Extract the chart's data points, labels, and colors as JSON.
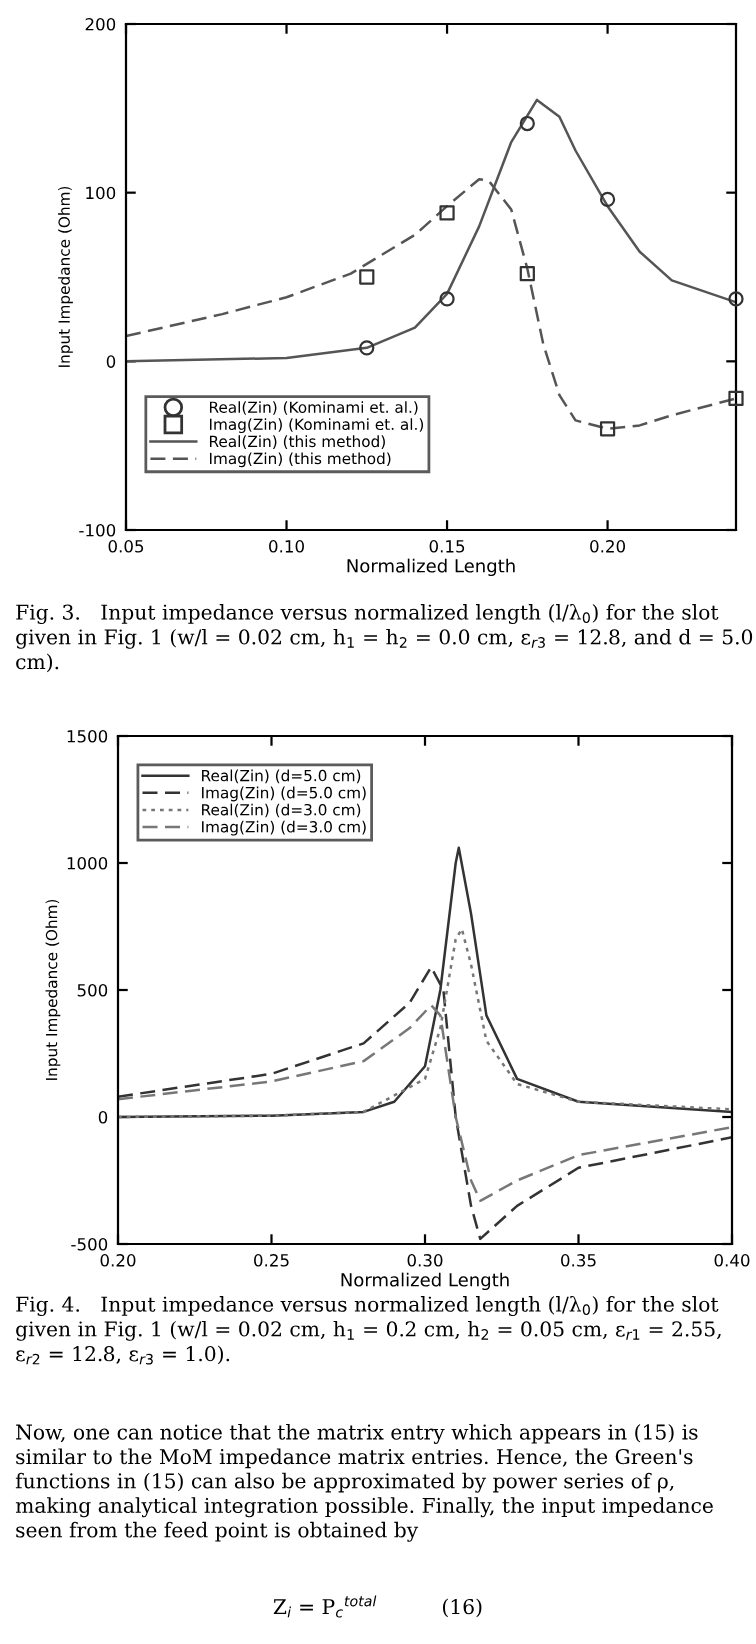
{
  "chart_data": [
    {
      "type": "line",
      "xlabel": "Normalized Length",
      "ylabel": "Input Impedance (Ohm)",
      "xlim": [
        0.05,
        0.24
      ],
      "ylim": [
        -100,
        200
      ],
      "xticks": [
        {
          "value": 0.05,
          "label": "0.05"
        },
        {
          "value": 0.1,
          "label": "0.10"
        },
        {
          "value": 0.15,
          "label": "0.15"
        },
        {
          "value": 0.2,
          "label": "0.20"
        }
      ],
      "yticks": [
        -100,
        0,
        100,
        200
      ],
      "grid": false,
      "legend": "bottom left",
      "series": [
        {
          "name": "Real(Zin) (Kominami et. al.)",
          "type": "scatter",
          "marker": "circle",
          "color": "#333333",
          "x": [
            0.125,
            0.15,
            0.175,
            0.2,
            0.24
          ],
          "values": [
            8,
            37,
            141,
            96,
            37
          ]
        },
        {
          "name": "Imag(Zin) (Kominami et. al.)",
          "type": "scatter",
          "marker": "square",
          "color": "#333333",
          "x": [
            0.125,
            0.15,
            0.175,
            0.2,
            0.24
          ],
          "values": [
            50,
            88,
            52,
            -40,
            -22
          ]
        },
        {
          "name": "Real(Zin) (this method)",
          "line_style": "solid",
          "color": "#555555",
          "x": [
            0.05,
            0.1,
            0.125,
            0.14,
            0.15,
            0.16,
            0.17,
            0.178,
            0.185,
            0.19,
            0.2,
            0.21,
            0.22,
            0.24
          ],
          "values": [
            0,
            2,
            8,
            20,
            40,
            80,
            130,
            155,
            145,
            125,
            92,
            65,
            48,
            35
          ]
        },
        {
          "name": "Imag(Zin) (this method)",
          "line_style": "dashed",
          "color": "#555555",
          "x": [
            0.05,
            0.08,
            0.1,
            0.12,
            0.14,
            0.15,
            0.16,
            0.163,
            0.17,
            0.175,
            0.18,
            0.185,
            0.19,
            0.2,
            0.21,
            0.22,
            0.24
          ],
          "values": [
            15,
            28,
            38,
            52,
            75,
            92,
            108,
            107,
            90,
            55,
            10,
            -20,
            -35,
            -40,
            -38,
            -32,
            -22
          ]
        }
      ],
      "annotations": [
        "Fig. 3.   Input impedance versus normalized length (l/λ$_{0}$) for the slot given in Fig. 1 (w/l = 0.02 cm, h$_{1}$ = h$_{2}$ = 0.0 cm, ε$_{r3}$ = 12.8, and d = 5.0 cm)."
      ]
    },
    {
      "type": "line",
      "xlabel": "Normalized Length",
      "ylabel": "Input Impedance (Ohm)",
      "xlim": [
        0.2,
        0.4
      ],
      "ylim": [
        -500,
        1500
      ],
      "xticks": [
        {
          "value": 0.2,
          "label": "0.20"
        },
        {
          "value": 0.25,
          "label": "0.25"
        },
        {
          "value": 0.3,
          "label": "0.30"
        },
        {
          "value": 0.35,
          "label": "0.35"
        },
        {
          "value": 0.4,
          "label": "0.40"
        }
      ],
      "yticks": [
        -500,
        0,
        500,
        1000,
        1500
      ],
      "grid": false,
      "legend": "top left",
      "series": [
        {
          "name": "Real(Zin) (d=5.0 cm)",
          "line_style": "solid",
          "color": "#333333",
          "x": [
            0.2,
            0.25,
            0.28,
            0.29,
            0.3,
            0.305,
            0.31,
            0.311,
            0.315,
            0.32,
            0.33,
            0.35,
            0.4
          ],
          "values": [
            0,
            5,
            20,
            60,
            200,
            500,
            1000,
            1060,
            800,
            400,
            150,
            60,
            20
          ]
        },
        {
          "name": "Imag(Zin) (d=5.0 cm)",
          "line_style": "dashed",
          "color": "#333333",
          "x": [
            0.2,
            0.25,
            0.28,
            0.295,
            0.302,
            0.306,
            0.31,
            0.315,
            0.318,
            0.33,
            0.35,
            0.4
          ],
          "values": [
            80,
            170,
            290,
            450,
            590,
            500,
            0,
            -350,
            -480,
            -350,
            -200,
            -80
          ]
        },
        {
          "name": "Real(Zin) (d=3.0 cm)",
          "line_style": "dotted",
          "color": "#777777",
          "x": [
            0.2,
            0.25,
            0.28,
            0.3,
            0.305,
            0.31,
            0.312,
            0.315,
            0.32,
            0.33,
            0.35,
            0.4
          ],
          "values": [
            0,
            5,
            20,
            150,
            350,
            700,
            740,
            600,
            300,
            130,
            60,
            30
          ]
        },
        {
          "name": "Imag(Zin) (d=3.0 cm)",
          "line_style": "dashed",
          "color": "#777777",
          "x": [
            0.2,
            0.25,
            0.28,
            0.295,
            0.302,
            0.305,
            0.31,
            0.315,
            0.318,
            0.33,
            0.35,
            0.4
          ],
          "values": [
            70,
            140,
            220,
            350,
            440,
            400,
            0,
            -250,
            -330,
            -250,
            -150,
            -40
          ]
        }
      ],
      "annotations": [
        "Fig. 4.   Input impedance versus normalized length (l/λ$_{0}$) for the slot given in Fig. 1 (w/l = 0.02 cm, h$_{1}$ = 0.2 cm, h$_{2}$ = 0.05 cm, ε$_{r1}$ = 2.55, ε$_{r2}$ = 12.8, ε$_{r3}$ = 1.0).",
        "Now, one can notice that the matrix entry which appears in (15) is similar to the MoM impedance matrix entries. Hence, the Green's functions in (15) can also be approximated by power series of ρ, making analytical integration possible. Finally, the input impedance seen from the feed point is obtained by",
        "Z$_{i}$ = P$_{c}$$^{total}$          (16)"
      ]
    }
  ]
}
